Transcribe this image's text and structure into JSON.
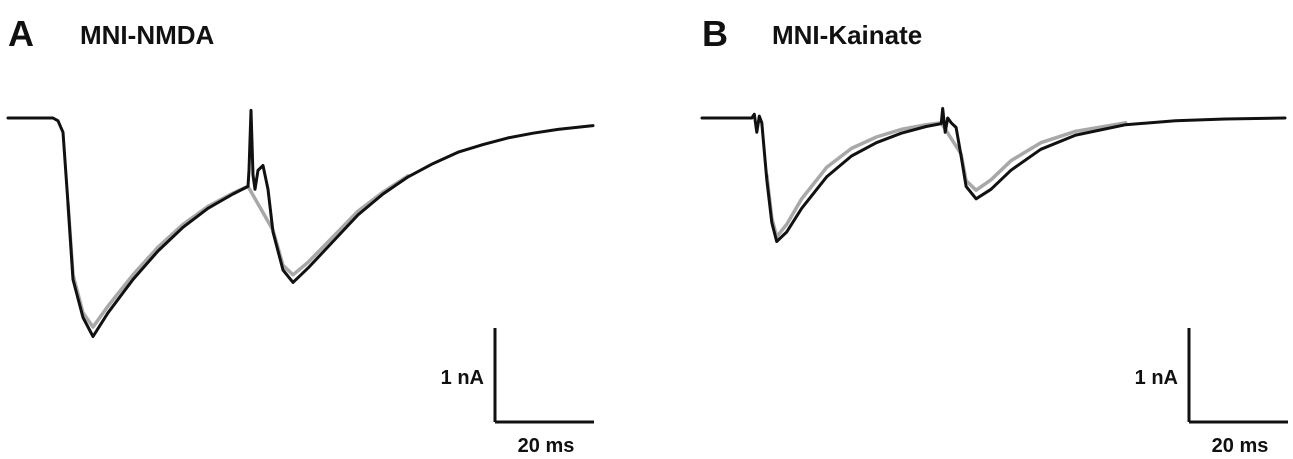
{
  "panels": [
    {
      "letter": "A",
      "title": "MNI-NMDA",
      "scalebar": {
        "y_label": "1 nA",
        "x_label": "20 ms"
      }
    },
    {
      "letter": "B",
      "title": "MNI-Kainate",
      "scalebar": {
        "y_label": "1 nA",
        "x_label": "20 ms"
      }
    }
  ],
  "colors": {
    "trace_black": "#111111",
    "trace_gray": "#a8a8a8",
    "text": "#111111"
  },
  "chart_data": [
    {
      "type": "line",
      "title": "MNI-NMDA",
      "x_unit": "ms",
      "y_unit": "nA",
      "xlim": [
        0,
        118
      ],
      "ylim": [
        -2.35,
        0.15
      ],
      "grid": false,
      "axes_visible": false,
      "series": [
        {
          "x": [
            0,
            9,
            10,
            11,
            12,
            13,
            15,
            17,
            20,
            25,
            30,
            35,
            40,
            45,
            48,
            48.2,
            48.6,
            49,
            49.4,
            50,
            51,
            52,
            53,
            55,
            57,
            60,
            65,
            70,
            75,
            80,
            85,
            90,
            95,
            100,
            105,
            110,
            117
          ],
          "y": [
            0,
            0,
            -0.03,
            -0.15,
            -0.9,
            -1.7,
            -2.1,
            -2.3,
            -2.05,
            -1.7,
            -1.4,
            -1.15,
            -0.95,
            -0.8,
            -0.72,
            -0.55,
            0.08,
            -0.6,
            -0.75,
            -0.55,
            -0.5,
            -0.75,
            -1.2,
            -1.6,
            -1.73,
            -1.58,
            -1.3,
            -1.02,
            -0.8,
            -0.62,
            -0.48,
            -0.36,
            -0.28,
            -0.21,
            -0.16,
            -0.12,
            -0.08
          ]
        },
        {
          "x": [
            12,
            13,
            15,
            17,
            20,
            25,
            30,
            35,
            40,
            45,
            48,
            53,
            55,
            57,
            60,
            65,
            70,
            75,
            80
          ],
          "y": [
            -0.9,
            -1.65,
            -2.05,
            -2.2,
            -1.98,
            -1.65,
            -1.36,
            -1.12,
            -0.93,
            -0.79,
            -0.72,
            -1.18,
            -1.55,
            -1.65,
            -1.52,
            -1.25,
            -0.98,
            -0.78,
            -0.61
          ]
        }
      ]
    },
    {
      "type": "line",
      "title": "MNI-Kainate",
      "x_unit": "ms",
      "y_unit": "nA",
      "xlim": [
        0,
        118
      ],
      "ylim": [
        -2.35,
        0.15
      ],
      "grid": false,
      "axes_visible": false,
      "series": [
        {
          "x": [
            0,
            10,
            10.5,
            11,
            11.5,
            12,
            13,
            14,
            15,
            17,
            20,
            25,
            30,
            35,
            40,
            45,
            48,
            48.3,
            48.8,
            49.3,
            50,
            51,
            52,
            53,
            55,
            58,
            62,
            68,
            75,
            85,
            95,
            105,
            117
          ],
          "y": [
            0,
            0,
            0.04,
            -0.15,
            0.02,
            -0.05,
            -0.65,
            -1.1,
            -1.3,
            -1.2,
            -0.95,
            -0.62,
            -0.4,
            -0.26,
            -0.16,
            -0.09,
            -0.06,
            0.1,
            -0.15,
            0.0,
            -0.05,
            -0.1,
            -0.4,
            -0.72,
            -0.85,
            -0.75,
            -0.55,
            -0.33,
            -0.18,
            -0.07,
            -0.03,
            -0.01,
            0
          ]
        },
        {
          "x": [
            13,
            14,
            15,
            17,
            20,
            25,
            30,
            35,
            40,
            45,
            48,
            52,
            53,
            55,
            58,
            62,
            68,
            75,
            85
          ],
          "y": [
            -0.6,
            -1.05,
            -1.25,
            -1.12,
            -0.85,
            -0.52,
            -0.32,
            -0.2,
            -0.12,
            -0.07,
            -0.05,
            -0.38,
            -0.66,
            -0.76,
            -0.65,
            -0.45,
            -0.26,
            -0.14,
            -0.05
          ]
        }
      ]
    }
  ]
}
